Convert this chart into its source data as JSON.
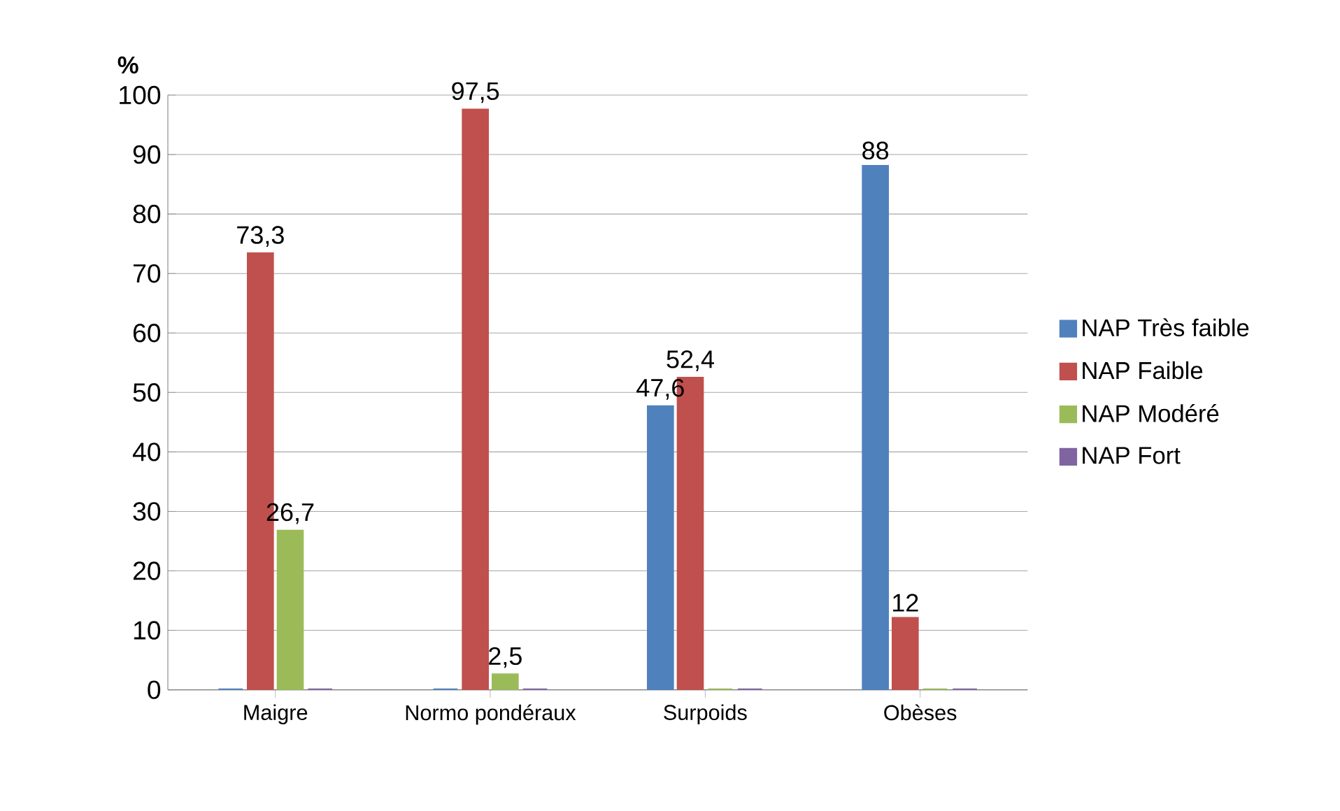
{
  "chart_data": {
    "type": "bar",
    "ylabel": "%",
    "categories": [
      "Maigre",
      "Normo pondéraux",
      "Surpoids",
      "Obèses"
    ],
    "series": [
      {
        "name": "NAP Très faible",
        "color": "#4f81bd",
        "values": [
          0,
          0,
          47.6,
          88
        ],
        "value_labels": [
          null,
          null,
          "47,6",
          "88"
        ]
      },
      {
        "name": "NAP Faible",
        "color": "#c0504d",
        "values": [
          73.3,
          97.5,
          52.4,
          12
        ],
        "value_labels": [
          "73,3",
          "97,5",
          "52,4",
          "12"
        ]
      },
      {
        "name": "NAP Modéré",
        "color": "#9bbb59",
        "values": [
          26.7,
          2.5,
          0,
          0
        ],
        "value_labels": [
          "26,7",
          "2,5",
          null,
          null
        ]
      },
      {
        "name": "NAP Fort",
        "color": "#8064a2",
        "values": [
          0,
          0,
          0,
          0
        ],
        "value_labels": [
          null,
          null,
          null,
          null
        ]
      }
    ],
    "ylim": [
      0,
      100
    ],
    "yticks": [
      0,
      10,
      20,
      30,
      40,
      50,
      60,
      70,
      80,
      90,
      100
    ],
    "grid": "y",
    "legend": "right"
  }
}
